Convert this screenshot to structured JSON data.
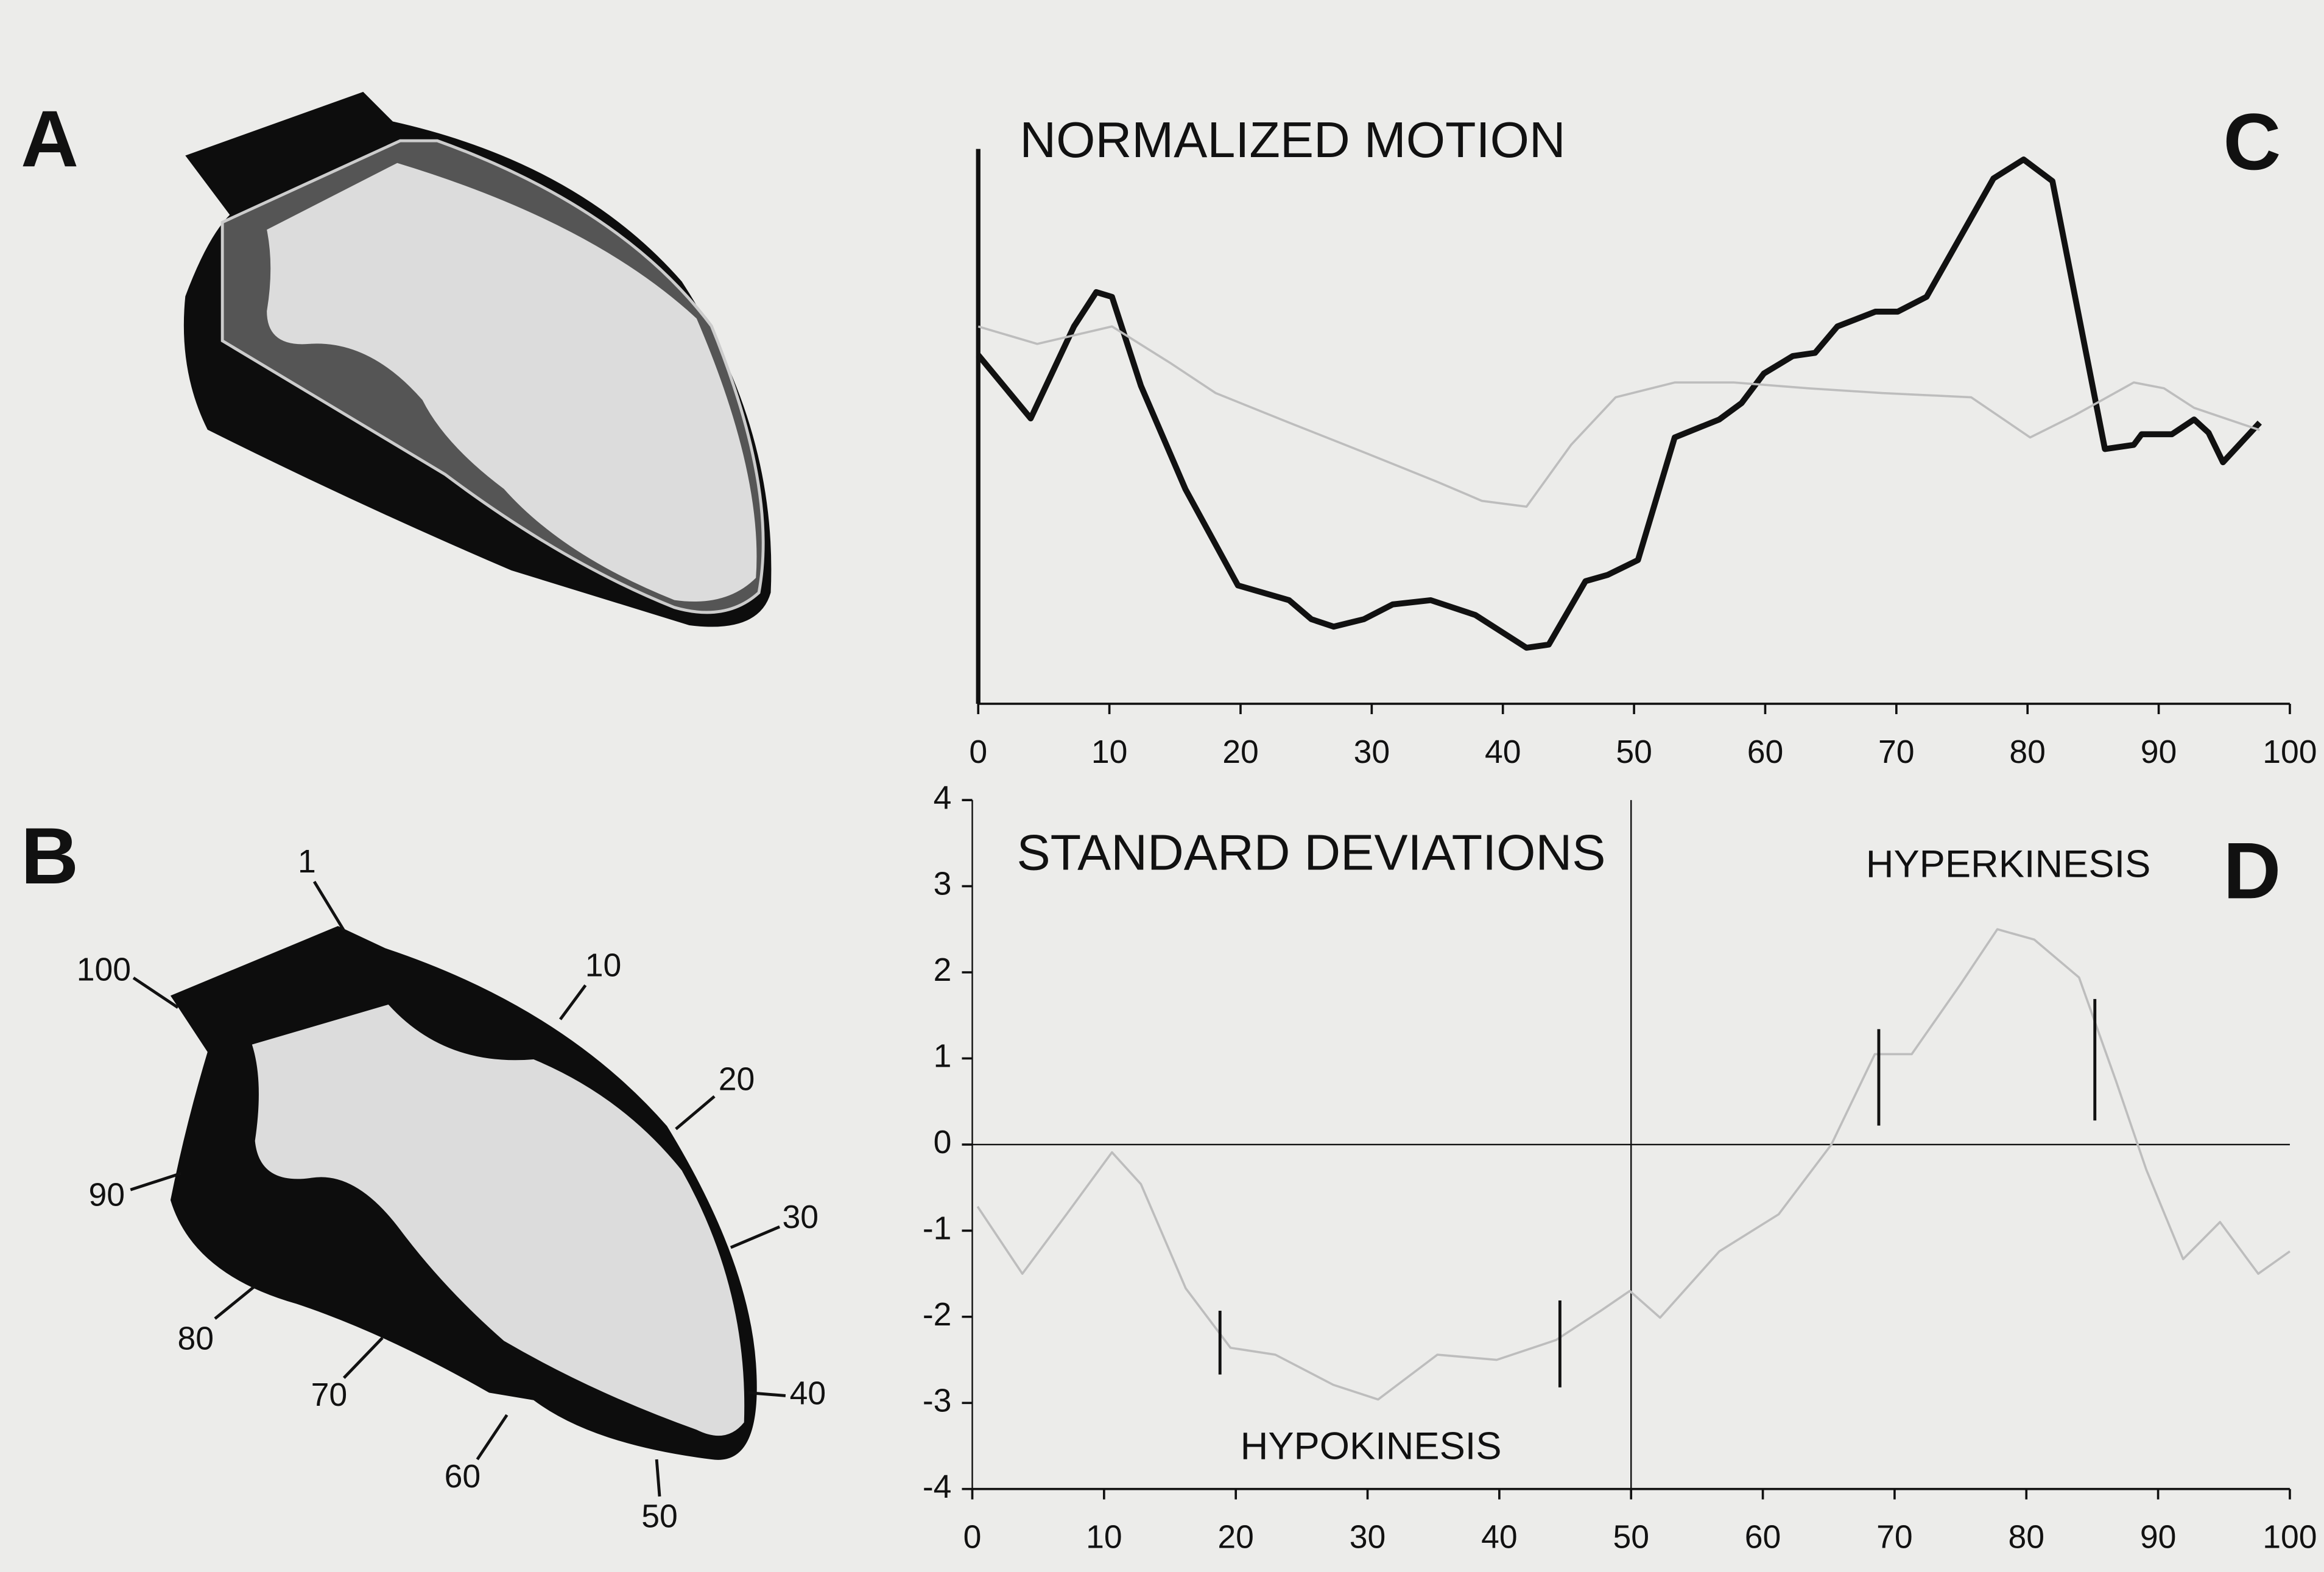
{
  "panels": [
    "A",
    "B",
    "C",
    "D"
  ],
  "diagram_b": {
    "labels": [
      "1",
      "10",
      "20",
      "30",
      "40",
      "50",
      "60",
      "70",
      "80",
      "90",
      "100"
    ]
  },
  "chart_data": [
    {
      "type": "line",
      "title": "NORMALIZED MOTION",
      "xlim": [
        0,
        100
      ],
      "xticks": [
        0,
        10,
        20,
        30,
        40,
        50,
        60,
        70,
        80,
        90,
        100
      ],
      "ylim": [
        0,
        105
      ],
      "series": [
        {
          "color": "#111111",
          "width": 4,
          "x": [
            0,
            4.0,
            7.3,
            9.0,
            10.2,
            12.4,
            15.8,
            19.8,
            23.7,
            25.4,
            27.1,
            29.4,
            31.6,
            34.5,
            37.9,
            41.8,
            43.5,
            46.3,
            48.0,
            50.3,
            53.1,
            56.5,
            58.2,
            59.9,
            62.1,
            63.8,
            65.5,
            68.4,
            70.1,
            72.3,
            77.4,
            79.7,
            81.9,
            85.9,
            88.1,
            88.7,
            91.0,
            92.7,
            93.8,
            94.9,
            97.7
          ],
          "values": [
            66,
            54,
            71.4,
            77.9,
            77,
            60.2,
            40.6,
            22.4,
            19.6,
            16,
            14.6,
            16,
            18.8,
            19.6,
            16.8,
            10.6,
            11.2,
            23.2,
            24.4,
            27.2,
            50.4,
            53.8,
            56.9,
            62.5,
            65.8,
            66.4,
            71.4,
            74.2,
            74.2,
            77,
            99.4,
            103,
            98.9,
            48.2,
            49,
            51,
            51,
            53.8,
            51.3,
            45.7,
            53.2
          ]
        },
        {
          "color": "#bdbdbd",
          "width": 1.5,
          "x": [
            0,
            4.5,
            10.2,
            14.7,
            18.1,
            23.7,
            29.4,
            35.0,
            38.4,
            41.8,
            45.2,
            48.6,
            53.1,
            57.6,
            63.3,
            68.9,
            75.7,
            80.2,
            83.6,
            88.1,
            90.4,
            92.7,
            97.7
          ],
          "values": [
            71.4,
            68.1,
            71.4,
            64.4,
            58.8,
            53.2,
            47.6,
            42,
            38.4,
            37.3,
            49,
            58,
            60.8,
            60.8,
            59.7,
            58.8,
            58,
            50.4,
            54.6,
            60.8,
            59.7,
            56,
            51.8
          ]
        }
      ]
    },
    {
      "type": "line",
      "title": "STANDARD DEVIATIONS",
      "annotations": [
        "HYPERKINESIS",
        "HYPOKINESIS"
      ],
      "xlim": [
        0,
        100
      ],
      "xticks": [
        0,
        10,
        20,
        30,
        40,
        50,
        60,
        70,
        80,
        90,
        100
      ],
      "ylim": [
        -4,
        4
      ],
      "yticks": [
        -4,
        -3,
        -2,
        -1,
        0,
        1,
        2,
        3,
        4
      ],
      "vline": 50,
      "hline": 0,
      "series": [
        {
          "color": "#bdbdbd",
          "width": 1.5,
          "x": [
            0.4,
            3.8,
            7.2,
            10.6,
            12.8,
            16.2,
            19.6,
            23,
            27.4,
            30.8,
            35.3,
            39.8,
            44.3,
            47.7,
            49.9,
            52.2,
            56.7,
            61.2,
            65.2,
            68.5,
            71.3,
            75,
            77.8,
            80.6,
            84,
            86.8,
            89.1,
            91.9,
            94.7,
            97.6,
            100
          ],
          "values": [
            -0.72,
            -1.5,
            -0.8,
            -0.09,
            -0.46,
            -1.67,
            -2.36,
            -2.44,
            -2.79,
            -2.96,
            -2.44,
            -2.5,
            -2.27,
            -1.93,
            -1.7,
            -2.01,
            -1.24,
            -0.81,
            0,
            1.05,
            1.05,
            1.86,
            2.5,
            2.38,
            1.94,
            0.74,
            -0.29,
            -1.33,
            -0.9,
            -1.5,
            -1.24
          ]
        }
      ],
      "markers": {
        "x": [
          18.8,
          44.6,
          68.8,
          85.2
        ],
        "low": [
          -2.67,
          -2.82,
          0.22,
          0.28
        ],
        "high": [
          -1.93,
          -1.81,
          1.34,
          1.69
        ]
      }
    }
  ]
}
